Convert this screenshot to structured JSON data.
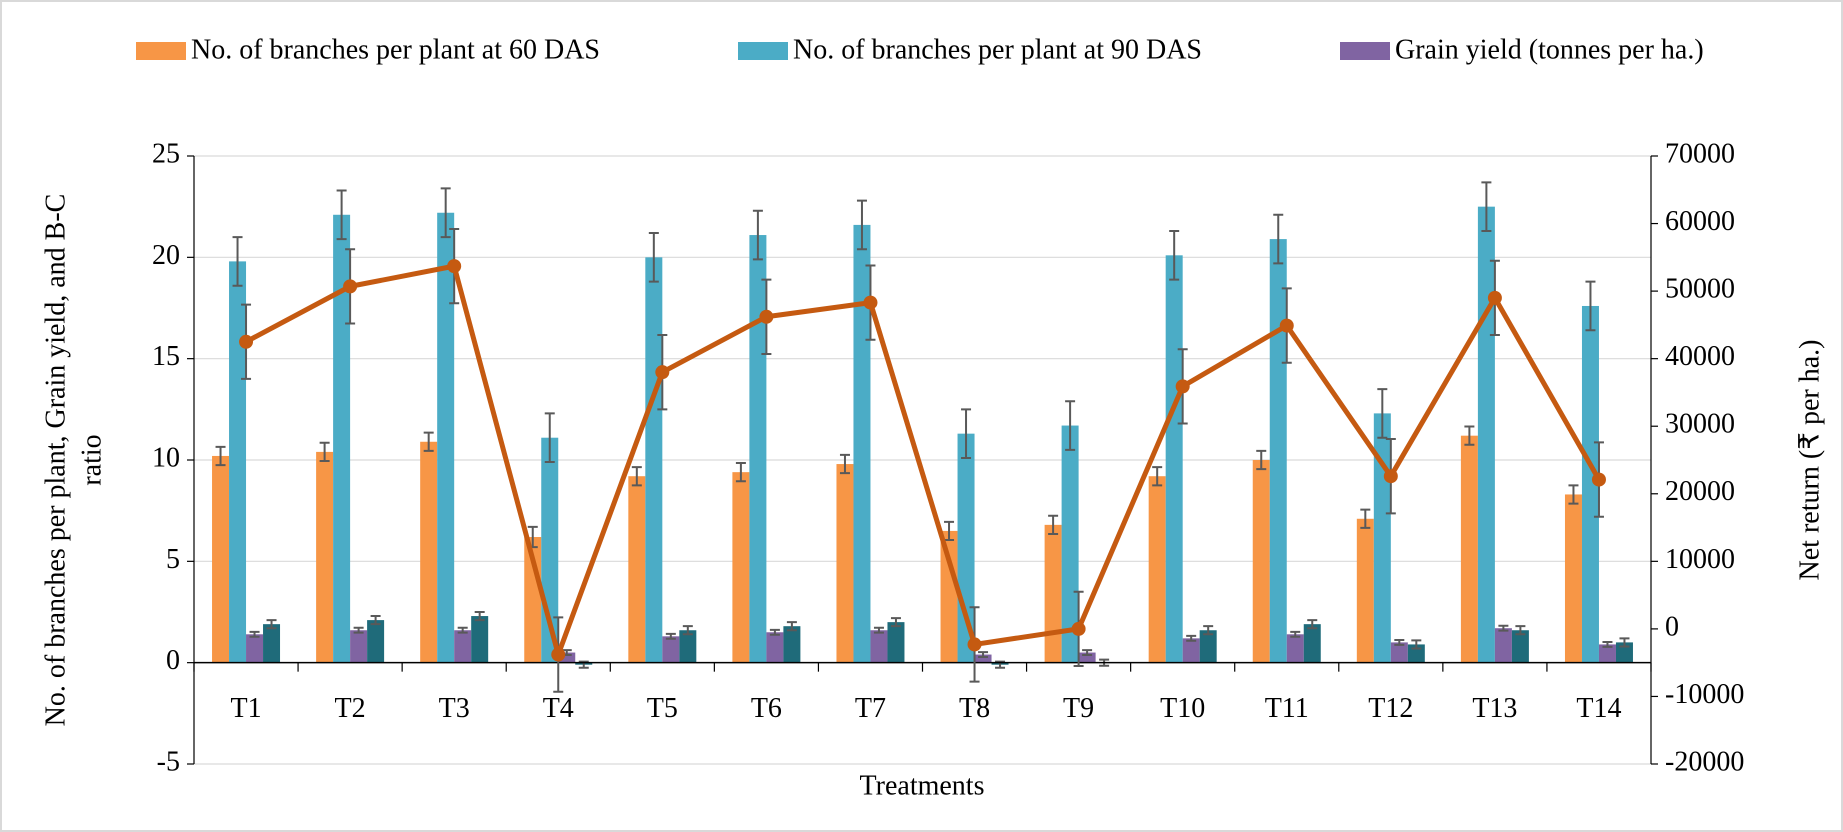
{
  "chart_data": {
    "type": "bar",
    "x_label": "Treatments",
    "y_label": [
      "No. of branches per plant, Grain yield,  and B-C",
      "ratio"
    ],
    "y2_label": "Net return (₹ per ha.)",
    "categories": [
      "T1",
      "T2",
      "T3",
      "T4",
      "T5",
      "T6",
      "T7",
      "T8",
      "T9",
      "T10",
      "T11",
      "T12",
      "T13",
      "T14"
    ],
    "ylim": [
      -5,
      25
    ],
    "yticks": [
      -5,
      0,
      5,
      10,
      15,
      20,
      25
    ],
    "y2lim": [
      -20000,
      70000
    ],
    "y2ticks": [
      -20000,
      -10000,
      0,
      10000,
      20000,
      30000,
      40000,
      50000,
      60000,
      70000
    ],
    "grid": true,
    "series": [
      {
        "name": "No. of branches per plant at 60 DAS",
        "type": "bar",
        "color": "#f79646",
        "values": [
          10.2,
          10.4,
          10.9,
          6.2,
          9.2,
          9.4,
          9.8,
          6.5,
          6.8,
          9.2,
          10.0,
          7.1,
          11.2,
          8.3
        ],
        "errors": [
          0.45,
          0.45,
          0.45,
          0.5,
          0.45,
          0.45,
          0.45,
          0.45,
          0.45,
          0.45,
          0.45,
          0.45,
          0.45,
          0.45
        ]
      },
      {
        "name": "No. of branches per plant at 90 DAS",
        "type": "bar",
        "color": "#4bacc6",
        "values": [
          19.8,
          22.1,
          22.2,
          11.1,
          20.0,
          21.1,
          21.6,
          11.3,
          11.7,
          20.1,
          20.9,
          12.3,
          22.5,
          17.6
        ],
        "errors": [
          1.2,
          1.2,
          1.2,
          1.2,
          1.2,
          1.2,
          1.2,
          1.2,
          1.2,
          1.2,
          1.2,
          1.2,
          1.2,
          1.2
        ]
      },
      {
        "name": "Grain yield (tonnes per ha.)",
        "type": "bar",
        "color": "#8064a2",
        "values": [
          1.4,
          1.6,
          1.6,
          0.5,
          1.3,
          1.5,
          1.6,
          0.4,
          0.5,
          1.2,
          1.4,
          1.0,
          1.7,
          0.9
        ],
        "errors": [
          0.12,
          0.12,
          0.12,
          0.12,
          0.12,
          0.12,
          0.12,
          0.12,
          0.12,
          0.12,
          0.12,
          0.12,
          0.12,
          0.12
        ]
      },
      {
        "type": "bar",
        "color": "#1f6b7a",
        "values": [
          1.9,
          2.1,
          2.3,
          -0.1,
          1.6,
          1.8,
          2.0,
          -0.1,
          0.0,
          1.6,
          1.9,
          0.9,
          1.6,
          1.0
        ],
        "errors": [
          0.2,
          0.2,
          0.2,
          0.15,
          0.2,
          0.2,
          0.2,
          0.15,
          0.15,
          0.2,
          0.2,
          0.2,
          0.2,
          0.2
        ]
      },
      {
        "type": "line",
        "axis": "y2",
        "color": "#c55a11",
        "values": [
          42500,
          50700,
          53700,
          -3800,
          38000,
          46200,
          48300,
          -2300,
          0,
          35900,
          44900,
          22600,
          49000,
          22100
        ],
        "errors": [
          5500,
          5500,
          5500,
          5500,
          5500,
          5500,
          5500,
          5500,
          5500,
          5500,
          5500,
          5500,
          5500,
          5500
        ]
      }
    ]
  }
}
